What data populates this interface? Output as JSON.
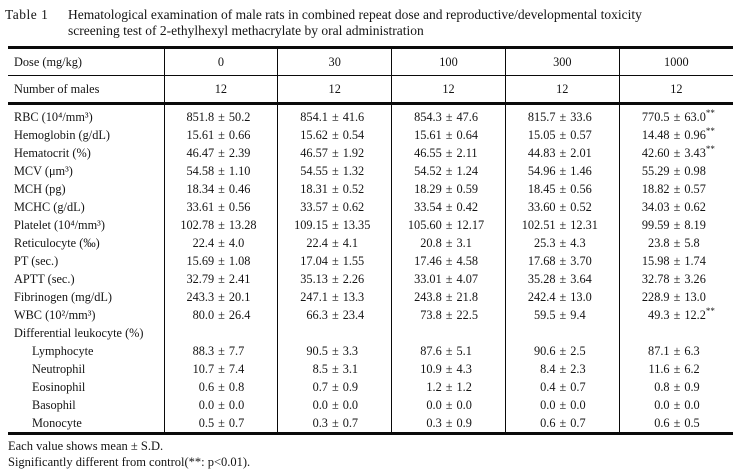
{
  "caption": {
    "label": "Table 1",
    "line1": "Hematological examination of male rats in combined repeat dose and reproductive/developmental toxicity",
    "line2": "screening test of 2-ethylhexyl methacrylate by oral administration"
  },
  "table": {
    "header": {
      "dose_label": "Dose (mg/kg)",
      "doses": [
        "0",
        "30",
        "100",
        "300",
        "1000"
      ],
      "n_label": "Number of males",
      "n_values": [
        "12",
        "12",
        "12",
        "12",
        "12"
      ]
    },
    "rows": [
      {
        "label": "RBC (10⁴/mm³)",
        "indent": false,
        "values": [
          {
            "mean": "851.8",
            "sd": "50.2",
            "mark": ""
          },
          {
            "mean": "854.1",
            "sd": "41.6",
            "mark": ""
          },
          {
            "mean": "854.3",
            "sd": "47.6",
            "mark": ""
          },
          {
            "mean": "815.7",
            "sd": "33.6",
            "mark": ""
          },
          {
            "mean": "770.5",
            "sd": "63.0",
            "mark": "**"
          }
        ]
      },
      {
        "label": "Hemoglobin (g/dL)",
        "indent": false,
        "values": [
          {
            "mean": "15.61",
            "sd": "0.66",
            "mark": ""
          },
          {
            "mean": "15.62",
            "sd": "0.54",
            "mark": ""
          },
          {
            "mean": "15.61",
            "sd": "0.64",
            "mark": ""
          },
          {
            "mean": "15.05",
            "sd": "0.57",
            "mark": ""
          },
          {
            "mean": "14.48",
            "sd": "0.96",
            "mark": "**"
          }
        ]
      },
      {
        "label": "Hematocrit (%)",
        "indent": false,
        "values": [
          {
            "mean": "46.47",
            "sd": "2.39",
            "mark": ""
          },
          {
            "mean": "46.57",
            "sd": "1.92",
            "mark": ""
          },
          {
            "mean": "46.55",
            "sd": "2.11",
            "mark": ""
          },
          {
            "mean": "44.83",
            "sd": "2.01",
            "mark": ""
          },
          {
            "mean": "42.60",
            "sd": "3.43",
            "mark": "**"
          }
        ]
      },
      {
        "label": "MCV (μm³)",
        "indent": false,
        "values": [
          {
            "mean": "54.58",
            "sd": "1.10",
            "mark": ""
          },
          {
            "mean": "54.55",
            "sd": "1.32",
            "mark": ""
          },
          {
            "mean": "54.52",
            "sd": "1.24",
            "mark": ""
          },
          {
            "mean": "54.96",
            "sd": "1.46",
            "mark": ""
          },
          {
            "mean": "55.29",
            "sd": "0.98",
            "mark": ""
          }
        ]
      },
      {
        "label": "MCH (pg)",
        "indent": false,
        "values": [
          {
            "mean": "18.34",
            "sd": "0.46",
            "mark": ""
          },
          {
            "mean": "18.31",
            "sd": "0.52",
            "mark": ""
          },
          {
            "mean": "18.29",
            "sd": "0.59",
            "mark": ""
          },
          {
            "mean": "18.45",
            "sd": "0.56",
            "mark": ""
          },
          {
            "mean": "18.82",
            "sd": "0.57",
            "mark": ""
          }
        ]
      },
      {
        "label": "MCHC (g/dL)",
        "indent": false,
        "values": [
          {
            "mean": "33.61",
            "sd": "0.56",
            "mark": ""
          },
          {
            "mean": "33.57",
            "sd": "0.62",
            "mark": ""
          },
          {
            "mean": "33.54",
            "sd": "0.42",
            "mark": ""
          },
          {
            "mean": "33.60",
            "sd": "0.52",
            "mark": ""
          },
          {
            "mean": "34.03",
            "sd": "0.62",
            "mark": ""
          }
        ]
      },
      {
        "label": "Platelet (10⁴/mm³)",
        "indent": false,
        "values": [
          {
            "mean": "102.78",
            "sd": "13.28",
            "mark": ""
          },
          {
            "mean": "109.15",
            "sd": "13.35",
            "mark": ""
          },
          {
            "mean": "105.60",
            "sd": "12.17",
            "mark": ""
          },
          {
            "mean": "102.51",
            "sd": "12.31",
            "mark": ""
          },
          {
            "mean": "99.59",
            "sd": "8.19",
            "mark": ""
          }
        ]
      },
      {
        "label": "Reticulocyte (‰)",
        "indent": false,
        "values": [
          {
            "mean": "22.4",
            "sd": "4.0",
            "mark": ""
          },
          {
            "mean": "22.4",
            "sd": "4.1",
            "mark": ""
          },
          {
            "mean": "20.8",
            "sd": "3.1",
            "mark": ""
          },
          {
            "mean": "25.3",
            "sd": "4.3",
            "mark": ""
          },
          {
            "mean": "23.8",
            "sd": "5.8",
            "mark": ""
          }
        ]
      },
      {
        "label": "PT (sec.)",
        "indent": false,
        "values": [
          {
            "mean": "15.69",
            "sd": "1.08",
            "mark": ""
          },
          {
            "mean": "17.04",
            "sd": "1.55",
            "mark": ""
          },
          {
            "mean": "17.46",
            "sd": "4.58",
            "mark": ""
          },
          {
            "mean": "17.68",
            "sd": "3.70",
            "mark": ""
          },
          {
            "mean": "15.98",
            "sd": "1.74",
            "mark": ""
          }
        ]
      },
      {
        "label": "APTT (sec.)",
        "indent": false,
        "values": [
          {
            "mean": "32.79",
            "sd": "2.41",
            "mark": ""
          },
          {
            "mean": "35.13",
            "sd": "2.26",
            "mark": ""
          },
          {
            "mean": "33.01",
            "sd": "4.07",
            "mark": ""
          },
          {
            "mean": "35.28",
            "sd": "3.64",
            "mark": ""
          },
          {
            "mean": "32.78",
            "sd": "3.26",
            "mark": ""
          }
        ]
      },
      {
        "label": "Fibrinogen (mg/dL)",
        "indent": false,
        "values": [
          {
            "mean": "243.3",
            "sd": "20.1",
            "mark": ""
          },
          {
            "mean": "247.1",
            "sd": "13.3",
            "mark": ""
          },
          {
            "mean": "243.8",
            "sd": "21.8",
            "mark": ""
          },
          {
            "mean": "242.4",
            "sd": "13.0",
            "mark": ""
          },
          {
            "mean": "228.9",
            "sd": "13.0",
            "mark": ""
          }
        ]
      },
      {
        "label": "WBC (10²/mm³)",
        "indent": false,
        "values": [
          {
            "mean": "80.0",
            "sd": "26.4",
            "mark": ""
          },
          {
            "mean": "66.3",
            "sd": "23.4",
            "mark": ""
          },
          {
            "mean": "73.8",
            "sd": "22.5",
            "mark": ""
          },
          {
            "mean": "59.5",
            "sd": "9.4",
            "mark": ""
          },
          {
            "mean": "49.3",
            "sd": "12.2",
            "mark": "**"
          }
        ]
      },
      {
        "label": "Differential leukocyte (%)",
        "indent": false,
        "values": []
      },
      {
        "label": "Lymphocyte",
        "indent": true,
        "values": [
          {
            "mean": "88.3",
            "sd": "7.7",
            "mark": ""
          },
          {
            "mean": "90.5",
            "sd": "3.3",
            "mark": ""
          },
          {
            "mean": "87.6",
            "sd": "5.1",
            "mark": ""
          },
          {
            "mean": "90.6",
            "sd": "2.5",
            "mark": ""
          },
          {
            "mean": "87.1",
            "sd": "6.3",
            "mark": ""
          }
        ]
      },
      {
        "label": "Neutrophil",
        "indent": true,
        "values": [
          {
            "mean": "10.7",
            "sd": "7.4",
            "mark": ""
          },
          {
            "mean": "8.5",
            "sd": "3.1",
            "mark": ""
          },
          {
            "mean": "10.9",
            "sd": "4.3",
            "mark": ""
          },
          {
            "mean": "8.4",
            "sd": "2.3",
            "mark": ""
          },
          {
            "mean": "11.6",
            "sd": "6.2",
            "mark": ""
          }
        ]
      },
      {
        "label": "Eosinophil",
        "indent": true,
        "values": [
          {
            "mean": "0.6",
            "sd": "0.8",
            "mark": ""
          },
          {
            "mean": "0.7",
            "sd": "0.9",
            "mark": ""
          },
          {
            "mean": "1.2",
            "sd": "1.2",
            "mark": ""
          },
          {
            "mean": "0.4",
            "sd": "0.7",
            "mark": ""
          },
          {
            "mean": "0.8",
            "sd": "0.9",
            "mark": ""
          }
        ]
      },
      {
        "label": "Basophil",
        "indent": true,
        "values": [
          {
            "mean": "0.0",
            "sd": "0.0",
            "mark": ""
          },
          {
            "mean": "0.0",
            "sd": "0.0",
            "mark": ""
          },
          {
            "mean": "0.0",
            "sd": "0.0",
            "mark": ""
          },
          {
            "mean": "0.0",
            "sd": "0.0",
            "mark": ""
          },
          {
            "mean": "0.0",
            "sd": "0.0",
            "mark": ""
          }
        ]
      },
      {
        "label": "Monocyte",
        "indent": true,
        "values": [
          {
            "mean": "0.5",
            "sd": "0.7",
            "mark": ""
          },
          {
            "mean": "0.3",
            "sd": "0.7",
            "mark": ""
          },
          {
            "mean": "0.3",
            "sd": "0.9",
            "mark": ""
          },
          {
            "mean": "0.6",
            "sd": "0.7",
            "mark": ""
          },
          {
            "mean": "0.6",
            "sd": "0.5",
            "mark": ""
          }
        ]
      }
    ]
  },
  "footnotes": [
    "Each value shows mean ± S.D.",
    "Significantly different from control(**: p<0.01)."
  ]
}
